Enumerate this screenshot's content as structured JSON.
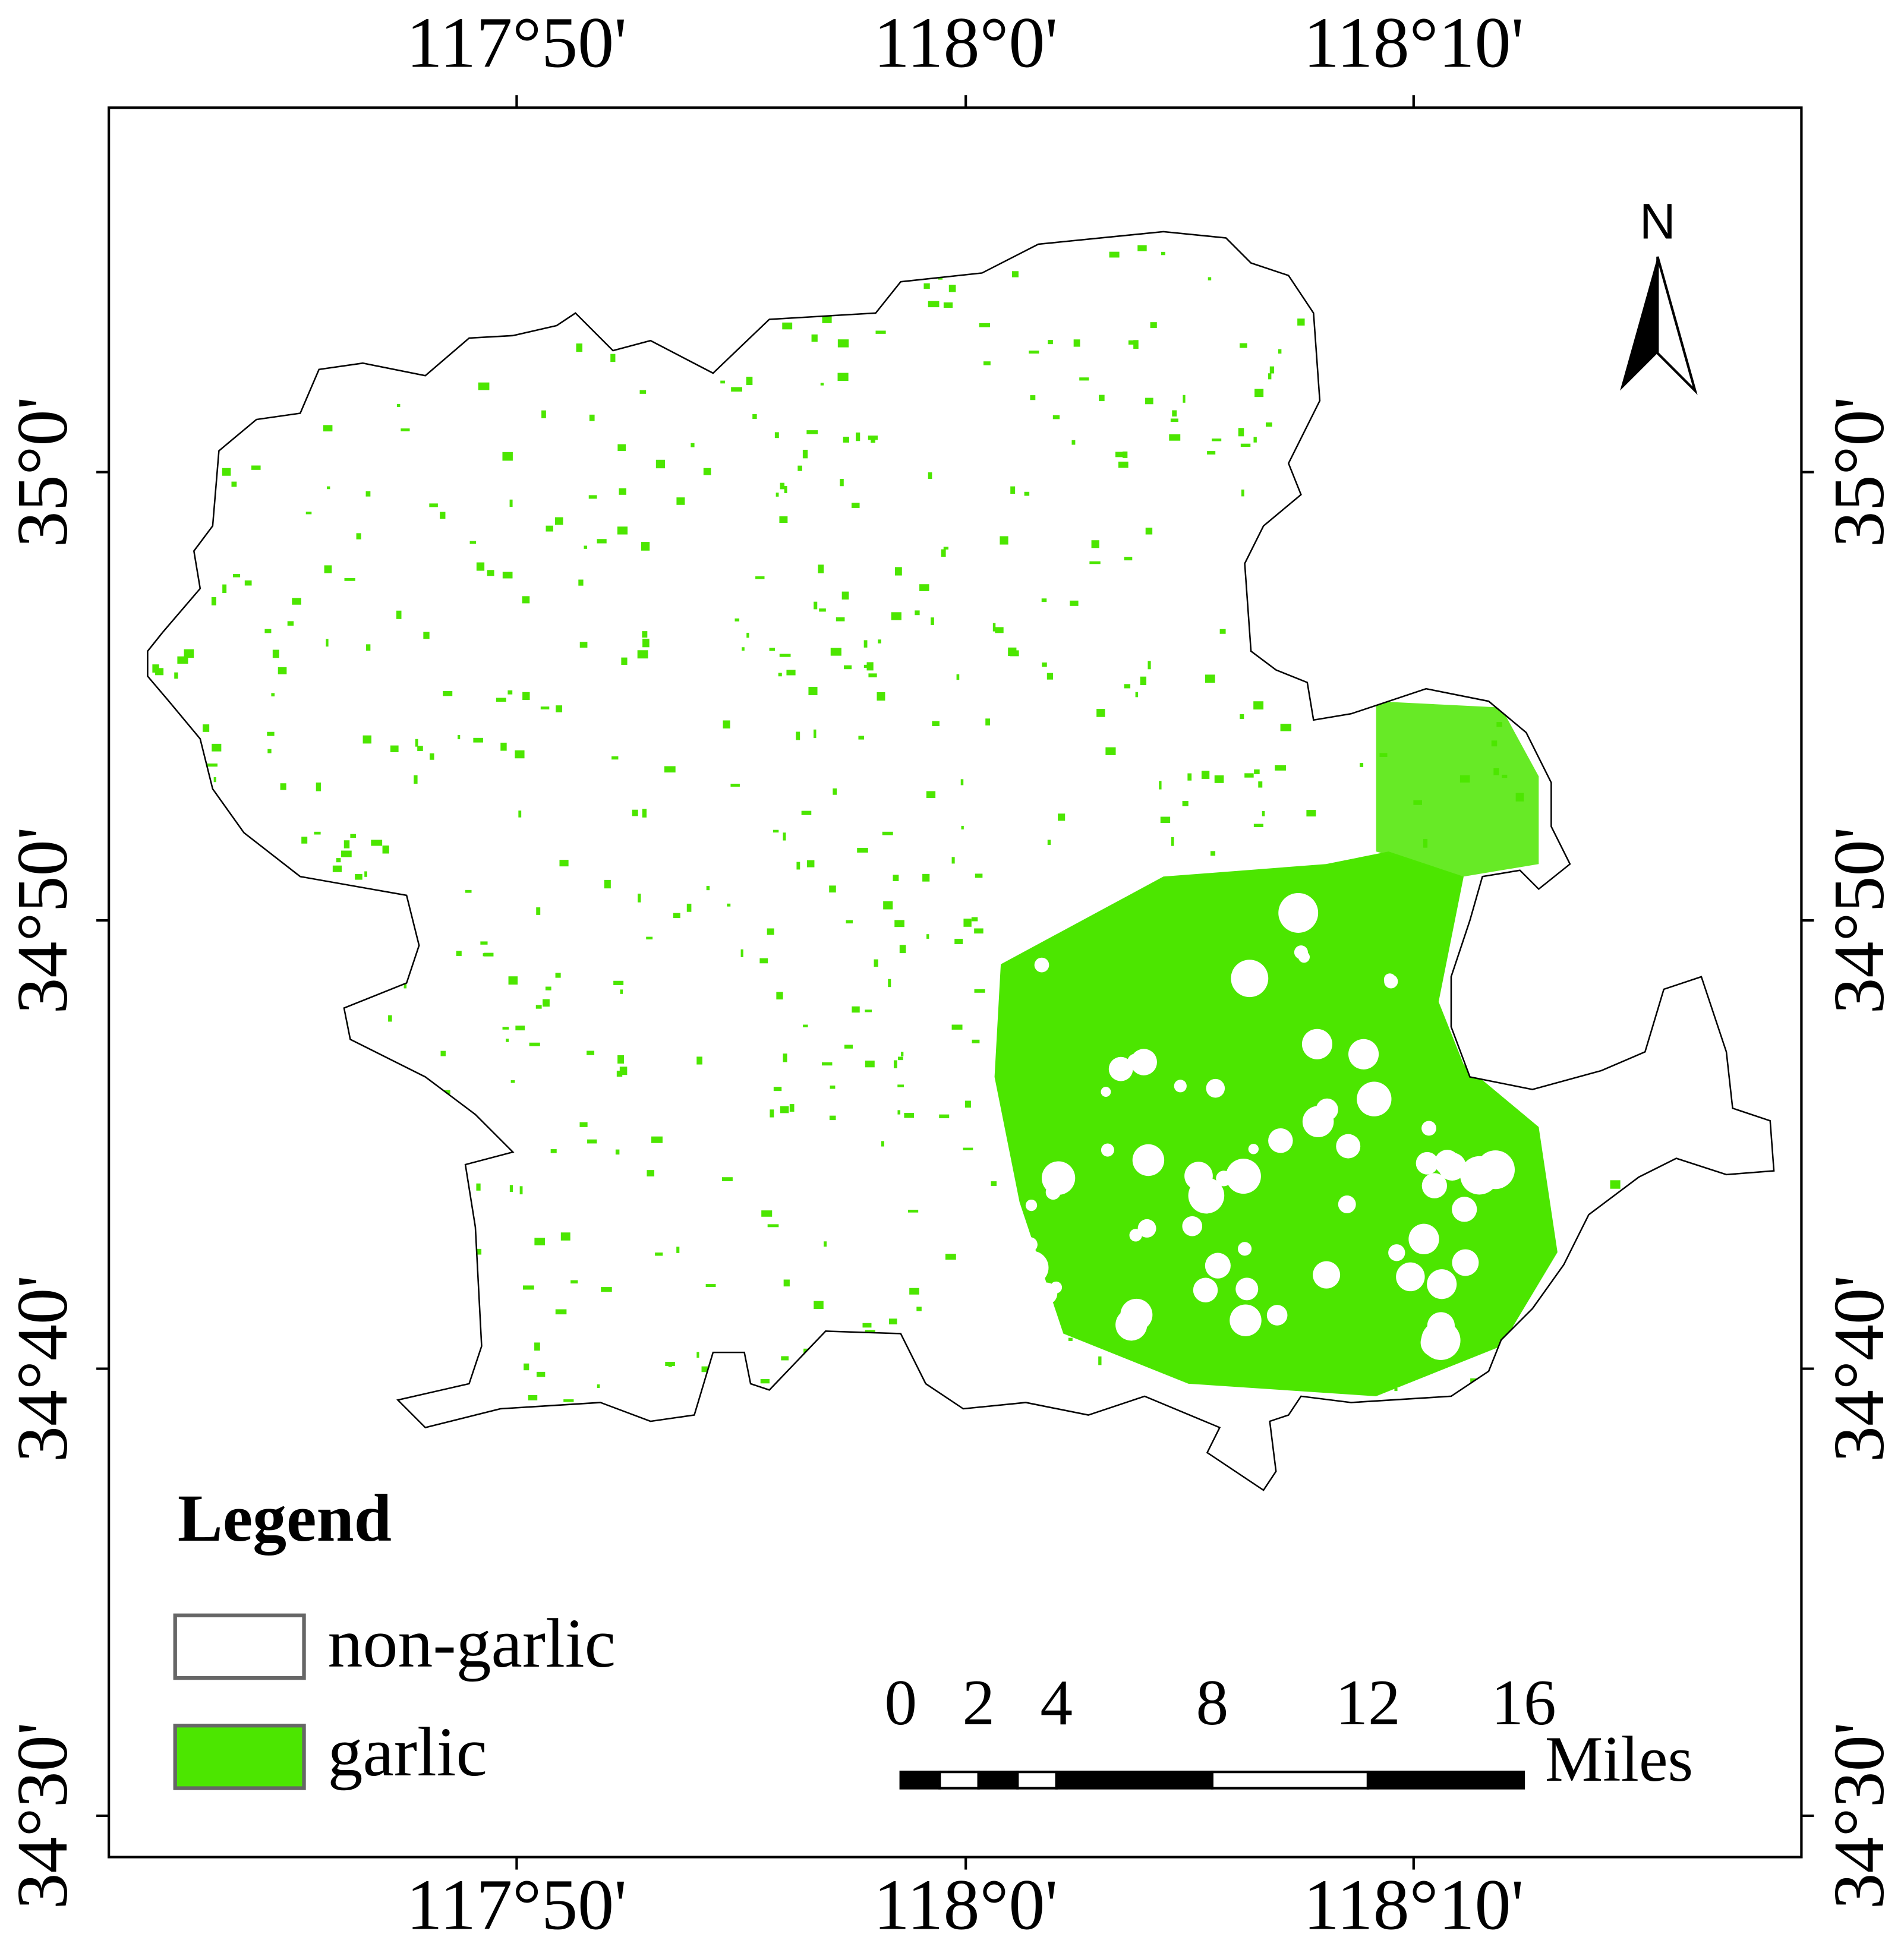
{
  "map": {
    "lon_labels": [
      "117°50'",
      "118°0'",
      "118°10'"
    ],
    "lat_labels": [
      "35°0'",
      "34°50'",
      "34°40'",
      "34°30'"
    ],
    "north": "N",
    "legend": {
      "title": "Legend",
      "items": [
        "non-garlic",
        "garlic"
      ]
    },
    "scale_bar": {
      "ticks": [
        0,
        2,
        4,
        8,
        12,
        16
      ],
      "unit": "Miles"
    }
  }
}
